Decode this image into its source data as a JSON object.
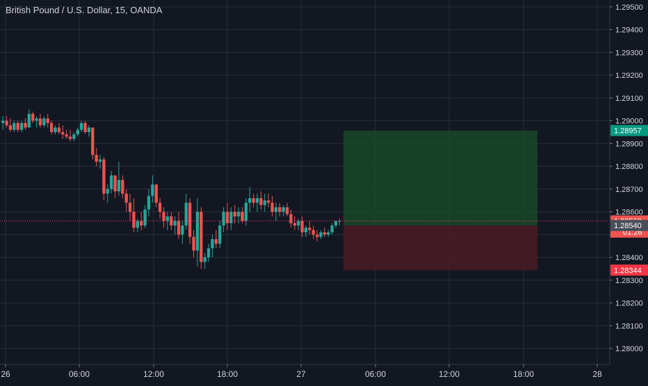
{
  "chart_data": {
    "type": "candlestick",
    "title": "British Pound / U.S. Dollar, 15, OANDA",
    "symbol": "British Pound / U.S. Dollar",
    "interval": "15",
    "source": "OANDA",
    "ylim": [
      1.2793,
      1.2953
    ],
    "y_ticks": [
      "1.28000",
      "1.28100",
      "1.28200",
      "1.28300",
      "1.28400",
      "1.28500",
      "1.28600",
      "1.28700",
      "1.28800",
      "1.28900",
      "1.29000",
      "1.29100",
      "1.29200",
      "1.29300",
      "1.29400",
      "1.29500"
    ],
    "x_ticks": [
      "26",
      "06:00",
      "12:00",
      "18:00",
      "27",
      "06:00",
      "12:00",
      "18:00",
      "28"
    ],
    "grid": true,
    "position": {
      "type": "long",
      "entry": 1.2854,
      "target": 1.28957,
      "stop": 1.28344,
      "start_bar": 0.645,
      "end_bar": 0.995
    },
    "price_labels": {
      "target": "1.28957",
      "current": "1.28560",
      "countdown": "01:26",
      "entry": "1.28540",
      "stop": "1.28344"
    },
    "current_price": 1.2856,
    "colors": {
      "up": "#26a69a",
      "down": "#ef5350",
      "background": "#131722",
      "grid": "#2a2e39",
      "text": "#d1d4dc",
      "target_zone": "#1b4d2a",
      "stop_zone": "#4d1b24",
      "target_label": "#089981",
      "stop_label": "#f23645",
      "entry_label": "#4a4e59",
      "current_label": "#ef5350"
    },
    "candles": [
      [
        1.2899,
        1.2902,
        1.2896,
        1.29
      ],
      [
        1.29,
        1.2902,
        1.2897,
        1.2898
      ],
      [
        1.2898,
        1.2901,
        1.2895,
        1.2896
      ],
      [
        1.2896,
        1.29,
        1.2895,
        1.2899
      ],
      [
        1.2899,
        1.29,
        1.2895,
        1.2896
      ],
      [
        1.2896,
        1.29,
        1.2895,
        1.2899
      ],
      [
        1.2899,
        1.2901,
        1.2896,
        1.2897
      ],
      [
        1.2897,
        1.2905,
        1.2897,
        1.2903
      ],
      [
        1.2903,
        1.2904,
        1.2899,
        1.29
      ],
      [
        1.29,
        1.2902,
        1.2897,
        1.2901
      ],
      [
        1.2901,
        1.2903,
        1.2897,
        1.2898
      ],
      [
        1.2898,
        1.2902,
        1.2897,
        1.2901
      ],
      [
        1.2901,
        1.2903,
        1.2897,
        1.2899
      ],
      [
        1.2899,
        1.29,
        1.2894,
        1.2895
      ],
      [
        1.2895,
        1.2898,
        1.2894,
        1.2897
      ],
      [
        1.2897,
        1.2899,
        1.2894,
        1.2895
      ],
      [
        1.2895,
        1.2898,
        1.2892,
        1.2894
      ],
      [
        1.2894,
        1.2896,
        1.2892,
        1.2893
      ],
      [
        1.2893,
        1.2896,
        1.2891,
        1.2892
      ],
      [
        1.2892,
        1.2895,
        1.2891,
        1.2894
      ],
      [
        1.2894,
        1.2897,
        1.2893,
        1.2896
      ],
      [
        1.2896,
        1.29,
        1.2895,
        1.2899
      ],
      [
        1.2899,
        1.29,
        1.2894,
        1.2895
      ],
      [
        1.2895,
        1.2898,
        1.2893,
        1.2897
      ],
      [
        1.2897,
        1.2897,
        1.2883,
        1.2885
      ],
      [
        1.2885,
        1.2888,
        1.288,
        1.2882
      ],
      [
        1.2882,
        1.2885,
        1.2879,
        1.2883
      ],
      [
        1.2883,
        1.2884,
        1.2865,
        1.2868
      ],
      [
        1.2868,
        1.2872,
        1.2864,
        1.287
      ],
      [
        1.287,
        1.2878,
        1.2868,
        1.2876
      ],
      [
        1.2876,
        1.2876,
        1.2866,
        1.2869
      ],
      [
        1.2869,
        1.2882,
        1.2867,
        1.2874
      ],
      [
        1.2874,
        1.2876,
        1.2866,
        1.2868
      ],
      [
        1.2868,
        1.287,
        1.286,
        1.2864
      ],
      [
        1.2864,
        1.2868,
        1.2856,
        1.286
      ],
      [
        1.286,
        1.2866,
        1.2851,
        1.2853
      ],
      [
        1.2853,
        1.2857,
        1.2851,
        1.2856
      ],
      [
        1.2856,
        1.286,
        1.2852,
        1.2854
      ],
      [
        1.2854,
        1.2863,
        1.2853,
        1.2861
      ],
      [
        1.2861,
        1.287,
        1.2858,
        1.2867
      ],
      [
        1.2867,
        1.2876,
        1.2864,
        1.2872
      ],
      [
        1.2872,
        1.2872,
        1.2862,
        1.2864
      ],
      [
        1.2864,
        1.2866,
        1.2857,
        1.286
      ],
      [
        1.286,
        1.2862,
        1.2853,
        1.2856
      ],
      [
        1.2856,
        1.286,
        1.2852,
        1.2858
      ],
      [
        1.2858,
        1.286,
        1.2852,
        1.2854
      ],
      [
        1.2854,
        1.2858,
        1.285,
        1.2856
      ],
      [
        1.2856,
        1.286,
        1.2848,
        1.285
      ],
      [
        1.285,
        1.2856,
        1.2846,
        1.2854
      ],
      [
        1.2854,
        1.2868,
        1.2852,
        1.2864
      ],
      [
        1.2864,
        1.2866,
        1.2846,
        1.2849
      ],
      [
        1.2849,
        1.2852,
        1.284,
        1.2843
      ],
      [
        1.2843,
        1.2866,
        1.2836,
        1.286
      ],
      [
        1.286,
        1.2862,
        1.2835,
        1.2838
      ],
      [
        1.2838,
        1.2842,
        1.2835,
        1.284
      ],
      [
        1.284,
        1.2846,
        1.2838,
        1.2844
      ],
      [
        1.2844,
        1.285,
        1.284,
        1.2848
      ],
      [
        1.2848,
        1.2852,
        1.2844,
        1.2846
      ],
      [
        1.2846,
        1.2856,
        1.2844,
        1.2854
      ],
      [
        1.2854,
        1.2862,
        1.2851,
        1.286
      ],
      [
        1.286,
        1.2864,
        1.2852,
        1.2855
      ],
      [
        1.2855,
        1.2862,
        1.2852,
        1.286
      ],
      [
        1.286,
        1.2863,
        1.2855,
        1.2858
      ],
      [
        1.2858,
        1.2862,
        1.2855,
        1.286
      ],
      [
        1.286,
        1.2862,
        1.2855,
        1.2856
      ],
      [
        1.2856,
        1.2866,
        1.2854,
        1.2864
      ],
      [
        1.2864,
        1.2871,
        1.286,
        1.2866
      ],
      [
        1.2866,
        1.2868,
        1.2862,
        1.2864
      ],
      [
        1.2864,
        1.2868,
        1.286,
        1.2866
      ],
      [
        1.2866,
        1.2869,
        1.2861,
        1.2863
      ],
      [
        1.2863,
        1.2868,
        1.286,
        1.2865
      ],
      [
        1.2865,
        1.2868,
        1.2862,
        1.2864
      ],
      [
        1.2864,
        1.2867,
        1.2858,
        1.286
      ],
      [
        1.286,
        1.2864,
        1.2856,
        1.2862
      ],
      [
        1.2862,
        1.2864,
        1.2858,
        1.286
      ],
      [
        1.286,
        1.2863,
        1.2858,
        1.2862
      ],
      [
        1.2862,
        1.2864,
        1.2858,
        1.2859
      ],
      [
        1.2859,
        1.2861,
        1.2853,
        1.2855
      ],
      [
        1.2855,
        1.2858,
        1.2852,
        1.2854
      ],
      [
        1.2854,
        1.2857,
        1.2852,
        1.2856
      ],
      [
        1.2856,
        1.2858,
        1.2849,
        1.2851
      ],
      [
        1.2851,
        1.2854,
        1.2849,
        1.2853
      ],
      [
        1.2853,
        1.2856,
        1.285,
        1.2852
      ],
      [
        1.2852,
        1.2854,
        1.2848,
        1.285
      ],
      [
        1.285,
        1.2852,
        1.2847,
        1.2849
      ],
      [
        1.2849,
        1.2852,
        1.2848,
        1.2851
      ],
      [
        1.2851,
        1.2853,
        1.2849,
        1.285
      ],
      [
        1.285,
        1.2852,
        1.2849,
        1.2851
      ],
      [
        1.2851,
        1.2855,
        1.285,
        1.2854
      ],
      [
        1.2854,
        1.2856,
        1.2853,
        1.2856
      ],
      [
        1.2856,
        1.2857,
        1.2854,
        1.2856
      ]
    ]
  }
}
